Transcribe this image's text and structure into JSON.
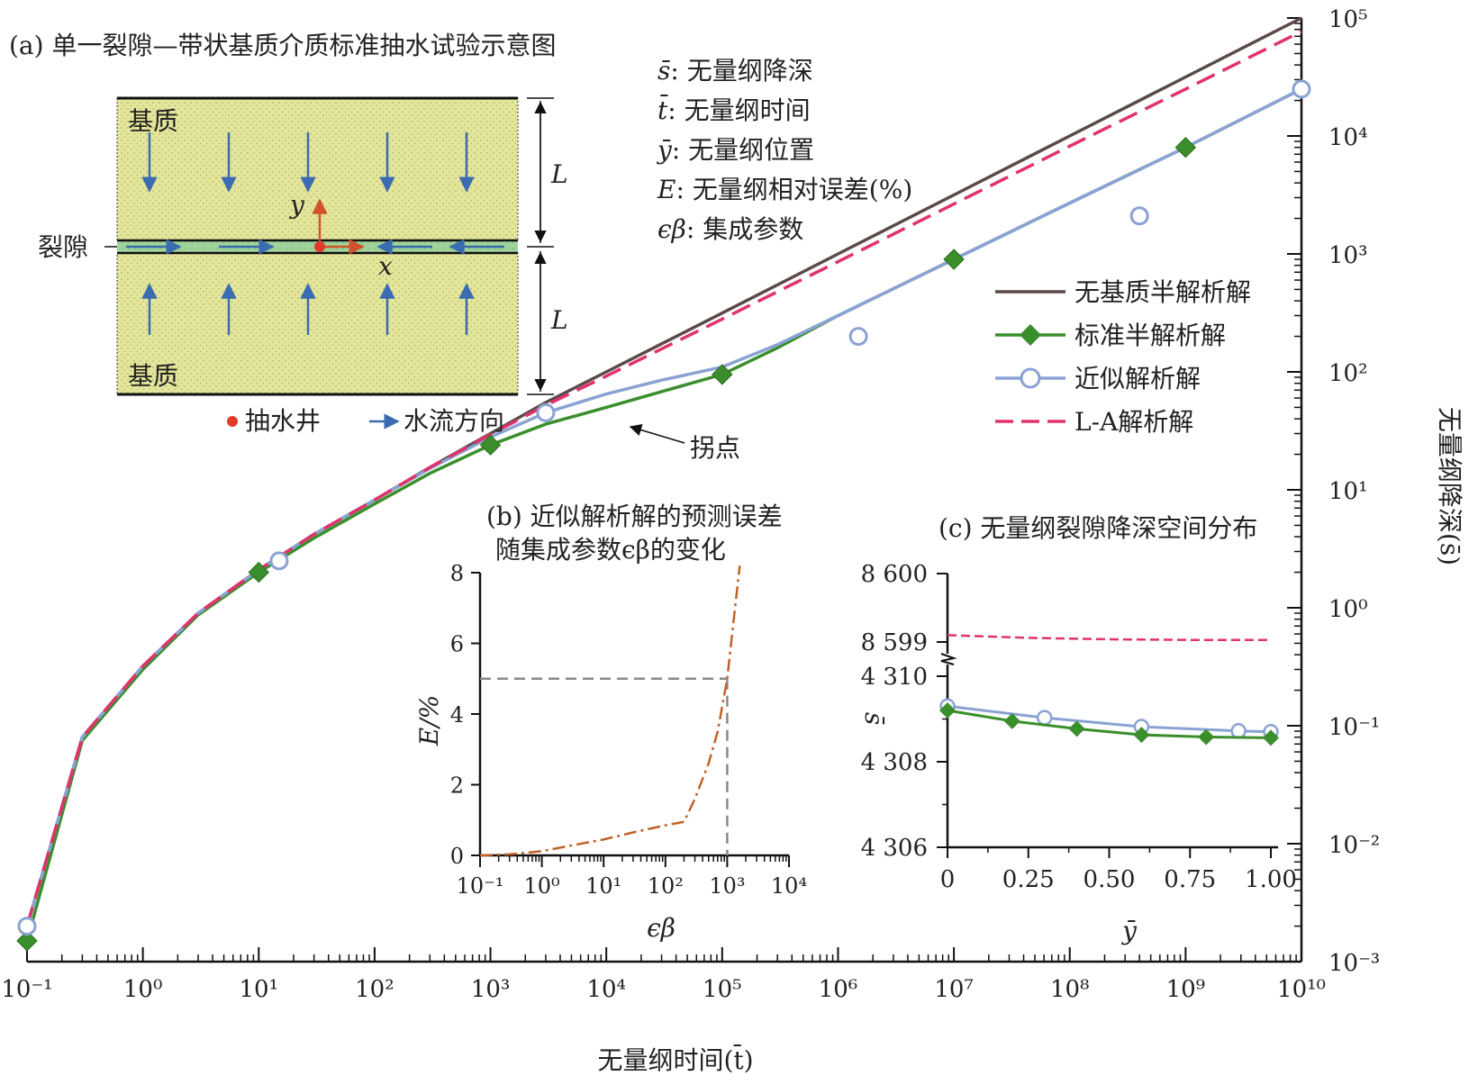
{
  "panel_a": {
    "title": "(a) 单一裂隙—带状基质介质标准抽水试验示意图",
    "matrix_top": "基质",
    "matrix_bottom": "基质",
    "fracture": "裂隙",
    "axis_x": "x",
    "axis_y": "y",
    "dim_label_top": "L",
    "dim_label_bottom": "L",
    "legend_well": "抽水井",
    "legend_flow": "水流方向",
    "colors": {
      "matrix": "#e3e69a",
      "fracture": "#9fd39a",
      "arrow": "#3b6bb0",
      "well": "#e03a2a",
      "axes": "#d1522a"
    }
  },
  "notations": [
    {
      "sym": "s̄",
      "desc": ": 无量纲降深"
    },
    {
      "sym": "t̄",
      "desc": ": 无量纲时间"
    },
    {
      "sym": "ȳ",
      "desc": ": 无量纲位置"
    },
    {
      "sym": "E",
      "desc": ": 无量纲相对误差(%)"
    },
    {
      "sym": "ϵβ",
      "desc": ": 集成参数"
    }
  ],
  "annotation": {
    "inflection": "拐点"
  },
  "legend": [
    {
      "label": "无基质半解析解",
      "color": "#5a4a48",
      "style": "solid",
      "marker": "none"
    },
    {
      "label": "标准半解析解",
      "color": "#3a8f2c",
      "style": "solid",
      "marker": "diamond"
    },
    {
      "label": "近似解析解",
      "color": "#8aa2d4",
      "style": "solid",
      "marker": "circle"
    },
    {
      "label": "L-A解析解",
      "color": "#e0336b",
      "style": "dashed",
      "marker": "none"
    }
  ],
  "chart_data": [
    {
      "type": "line",
      "xscale": "log",
      "yscale": "log",
      "xlabel": "无量纲时间(t̄)",
      "ylabel": "无量纲降深(s̄)",
      "xlim": [
        0.1,
        10000000000
      ],
      "ylim": [
        0.001,
        100000
      ],
      "x_tick_labels": [
        "10⁻¹",
        "10⁰",
        "10¹",
        "10²",
        "10³",
        "10⁴",
        "10⁵",
        "10⁶",
        "10⁷",
        "10⁸",
        "10⁹",
        "10¹⁰"
      ],
      "y_tick_labels": [
        "10⁻³",
        "10⁻²",
        "10⁻¹",
        "10⁰",
        "10¹",
        "10²",
        "10³",
        "10⁴",
        "10⁵"
      ],
      "series": [
        {
          "name": "无基质半解析解",
          "x": [
            0.1,
            0.3,
            1,
            3,
            10,
            30,
            100,
            300,
            1000,
            3000,
            10000,
            100000,
            1000000,
            10000000,
            100000000,
            1000000000,
            10000000000
          ],
          "y": [
            0.002,
            0.08,
            0.32,
            0.9,
            2.1,
            4.2,
            8.2,
            15.5,
            30,
            55,
            100,
            315,
            1000,
            3160,
            10000,
            31600,
            100000
          ]
        },
        {
          "name": "L-A解析解",
          "x": [
            0.1,
            0.3,
            1,
            3,
            10,
            30,
            100,
            300,
            1000,
            3000,
            10000,
            100000,
            1000000,
            10000000,
            100000000,
            1000000000,
            10000000000
          ],
          "y": [
            0.002,
            0.08,
            0.32,
            0.9,
            2.1,
            4.2,
            8.2,
            15.5,
            29.5,
            52,
            92,
            280,
            860,
            2650,
            8200,
            25000,
            77000
          ]
        },
        {
          "name": "标准半解析解",
          "x": [
            0.1,
            0.3,
            1,
            3,
            10,
            30,
            100,
            300,
            1000,
            3000,
            10000,
            30000,
            100000,
            300000,
            1000000,
            10000000,
            100000000,
            1000000000,
            10000000000
          ],
          "y": [
            0.0015,
            0.075,
            0.3,
            0.87,
            2.0,
            3.9,
            7.6,
            13.8,
            24,
            36,
            50,
            68,
            95,
            160,
            300,
            900,
            2700,
            8000,
            25000
          ]
        },
        {
          "name": "标准半解析解 (markers)",
          "x": [
            0.1,
            10,
            1000,
            100000,
            10000000,
            1000000000
          ],
          "y": [
            0.0015,
            2.0,
            24,
            95,
            900,
            8000
          ]
        },
        {
          "name": "近似解析解",
          "x": [
            0.1,
            0.3,
            1,
            3,
            10,
            30,
            100,
            300,
            1000,
            3000,
            10000,
            30000,
            100000,
            300000,
            1000000,
            10000000,
            100000000,
            1000000000,
            10000000000
          ],
          "y": [
            0.002,
            0.08,
            0.32,
            0.9,
            2.1,
            4.2,
            8.2,
            15.2,
            28,
            45,
            65,
            85,
            110,
            170,
            300,
            900,
            2700,
            8000,
            25000
          ]
        },
        {
          "name": "近似解析解 (markers)",
          "x": [
            0.1,
            15,
            3000,
            1500000,
            400000000,
            10000000000
          ],
          "y": [
            0.002,
            2.5,
            45,
            200,
            2100,
            25000
          ]
        }
      ]
    },
    {
      "type": "line",
      "title": "(b) 近似解析解的预测误差\n随集成参数ϵβ的变化",
      "xscale": "log",
      "xlabel": "ϵβ",
      "ylabel": "E/%",
      "xlim": [
        0.1,
        10000
      ],
      "ylim": [
        0,
        8
      ],
      "x_tick_labels": [
        "10⁻¹",
        "10⁰",
        "10¹",
        "10²",
        "10³",
        "10⁴"
      ],
      "y_tick_labels": [
        "0",
        "2",
        "4",
        "6",
        "8"
      ],
      "reference_y": 5,
      "reference_x": 1000,
      "series": [
        {
          "name": "E",
          "x": [
            0.1,
            0.3,
            1,
            3,
            10,
            30,
            100,
            200,
            300,
            500,
            700,
            1000,
            1300,
            1600
          ],
          "y": [
            0,
            0.03,
            0.12,
            0.28,
            0.45,
            0.65,
            0.85,
            0.95,
            1.6,
            2.6,
            3.5,
            5.0,
            6.8,
            8.2
          ]
        }
      ]
    },
    {
      "type": "line",
      "title": "(c) 无量纲裂隙降深空间分布",
      "xlabel": "ȳ",
      "ylabel": "s̄",
      "xlim": [
        0,
        1.0
      ],
      "x_tick_labels": [
        "0",
        "0.25",
        "0.50",
        "0.75",
        "1.00"
      ],
      "y_tick_labels": [
        "4 306",
        "4 308",
        "4 310",
        "8 599",
        "8 600"
      ],
      "axis_break": [
        4310,
        8599
      ],
      "series": [
        {
          "name": "L-A解析解",
          "x": [
            0,
            0.25,
            0.5,
            0.75,
            1.0
          ],
          "y": [
            8599.1,
            8599.06,
            8599.04,
            8599.03,
            8599.03
          ]
        },
        {
          "name": "近似解析解",
          "x": [
            0,
            0.3,
            0.6,
            0.9,
            1.0
          ],
          "y": [
            4309.3,
            4309.03,
            4308.82,
            4308.72,
            4308.7
          ]
        },
        {
          "name": "标准半解析解",
          "x": [
            0,
            0.2,
            0.4,
            0.6,
            0.8,
            1.0
          ],
          "y": [
            4309.2,
            4308.95,
            4308.77,
            4308.63,
            4308.58,
            4308.56
          ]
        }
      ]
    }
  ]
}
